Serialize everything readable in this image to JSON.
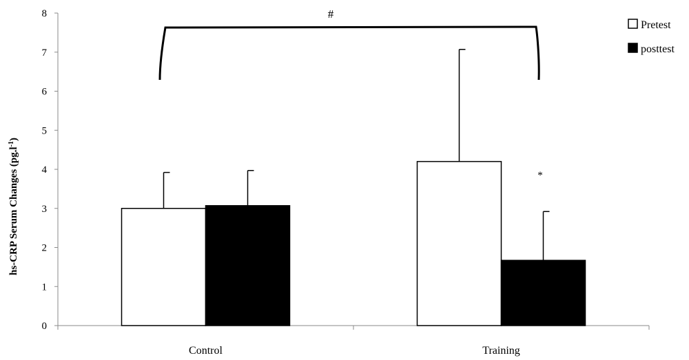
{
  "chart_data": {
    "type": "bar",
    "ylabel_main": "hs-CRP Serum Changes (pg.l",
    "ylabel_sup": "-1",
    "ylabel_close": ")",
    "ylim": [
      0,
      8
    ],
    "yticks": [
      "0",
      "1",
      "2",
      "3",
      "4",
      "5",
      "6",
      "7",
      "8"
    ],
    "categories": [
      "Control",
      "Training"
    ],
    "series": [
      {
        "name": "Pretest",
        "color": "#ffffff",
        "values": [
          3.0,
          4.2
        ],
        "errors": [
          0.92,
          2.87
        ]
      },
      {
        "name": "posttest",
        "color": "#000000",
        "values": [
          3.07,
          1.67
        ],
        "errors": [
          0.9,
          1.25
        ]
      }
    ],
    "legend_position": "top-right",
    "annotations": {
      "group_significance": "#",
      "within_significance": "*"
    }
  }
}
